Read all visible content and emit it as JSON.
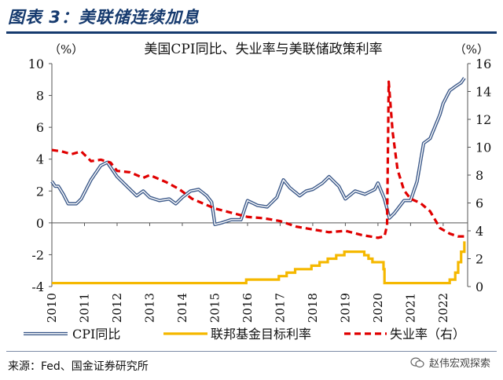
{
  "figure": {
    "title": "图表 3：美联储连续加息",
    "source": "来源：Fed、国金证券研究所",
    "watermark": "赵伟宏观探索"
  },
  "chart_data": {
    "type": "line",
    "title": "美国CPI同比、失业率与美联储政策利率",
    "left_unit": "（%）",
    "right_unit": "（%）",
    "x_range": [
      2010.0,
      2022.75
    ],
    "x_ticks": [
      "2010",
      "2011",
      "2012",
      "2013",
      "2014",
      "2015",
      "2016",
      "2017",
      "2018",
      "2019",
      "2020",
      "2021",
      "2022"
    ],
    "left_ylim": [
      -4,
      10
    ],
    "left_ticks": [
      "10",
      "8",
      "6",
      "4",
      "2",
      "0",
      "-2",
      "-4"
    ],
    "right_ylim": [
      0,
      16
    ],
    "right_ticks": [
      "16",
      "14",
      "12",
      "10",
      "8",
      "6",
      "4",
      "2",
      "0"
    ],
    "grid": false,
    "legend_position": "bottom",
    "series": [
      {
        "name": "CPI同比",
        "axis": "left",
        "color": "#3d5a8a",
        "style": "double-line",
        "x": [
          2010.0,
          2010.1,
          2010.2,
          2010.35,
          2010.5,
          2010.75,
          2010.9,
          2011.2,
          2011.5,
          2011.7,
          2012.0,
          2012.3,
          2012.6,
          2012.8,
          2013.0,
          2013.3,
          2013.6,
          2013.8,
          2014.0,
          2014.25,
          2014.5,
          2014.75,
          2014.9,
          2015.0,
          2015.2,
          2015.5,
          2015.8,
          2016.0,
          2016.3,
          2016.6,
          2016.9,
          2017.1,
          2017.3,
          2017.6,
          2017.8,
          2018.0,
          2018.3,
          2018.5,
          2018.8,
          2019.0,
          2019.3,
          2019.6,
          2019.9,
          2020.0,
          2020.2,
          2020.35,
          2020.5,
          2020.8,
          2021.0,
          2021.2,
          2021.4,
          2021.6,
          2021.9,
          2022.0,
          2022.2,
          2022.4,
          2022.55,
          2022.65
        ],
        "values": [
          2.6,
          2.3,
          2.3,
          1.8,
          1.2,
          1.2,
          1.5,
          2.7,
          3.6,
          3.8,
          2.9,
          2.3,
          1.7,
          2.0,
          1.6,
          1.4,
          1.5,
          1.2,
          1.6,
          2.0,
          2.1,
          1.7,
          1.3,
          -0.1,
          0.0,
          0.2,
          0.2,
          1.4,
          1.1,
          1.0,
          1.6,
          2.7,
          2.2,
          1.7,
          2.0,
          2.1,
          2.5,
          2.9,
          2.3,
          1.5,
          2.0,
          1.8,
          2.1,
          2.5,
          1.5,
          0.3,
          0.6,
          1.4,
          1.4,
          2.6,
          5.0,
          5.3,
          6.8,
          7.5,
          8.3,
          8.6,
          8.8,
          9.1
        ]
      },
      {
        "name": "联邦基金目标利率",
        "axis": "right",
        "color": "#f5b800",
        "style": "step",
        "x": [
          2010.0,
          2015.96,
          2016.96,
          2017.2,
          2017.46,
          2017.96,
          2018.21,
          2018.46,
          2018.72,
          2018.97,
          2019.58,
          2019.71,
          2019.83,
          2020.17,
          2020.2,
          2022.2,
          2022.37,
          2022.46,
          2022.55,
          2022.65
        ],
        "values": [
          0.25,
          0.5,
          0.75,
          1.0,
          1.25,
          1.5,
          1.75,
          2.0,
          2.25,
          2.5,
          2.25,
          2.0,
          1.75,
          1.25,
          0.25,
          0.5,
          1.0,
          1.75,
          2.5,
          3.25
        ]
      },
      {
        "name": "失业率（右）",
        "axis": "right",
        "color": "#e00000",
        "style": "dashed",
        "x": [
          2010.0,
          2010.3,
          2010.6,
          2010.9,
          2011.2,
          2011.5,
          2011.8,
          2012.0,
          2012.4,
          2012.8,
          2013.0,
          2013.5,
          2013.9,
          2014.3,
          2014.7,
          2015.0,
          2015.5,
          2016.0,
          2016.5,
          2017.0,
          2017.5,
          2018.0,
          2018.5,
          2019.0,
          2019.5,
          2020.0,
          2020.2,
          2020.28,
          2020.33,
          2020.45,
          2020.6,
          2020.8,
          2021.0,
          2021.3,
          2021.6,
          2021.9,
          2022.2,
          2022.45,
          2022.65
        ],
        "values": [
          9.8,
          9.7,
          9.5,
          9.7,
          9.0,
          9.1,
          8.9,
          8.3,
          8.2,
          7.8,
          8.0,
          7.5,
          7.0,
          6.3,
          5.9,
          5.6,
          5.3,
          5.0,
          4.9,
          4.7,
          4.3,
          4.1,
          3.9,
          4.0,
          3.7,
          3.5,
          3.6,
          4.4,
          14.7,
          11.1,
          8.4,
          6.9,
          6.3,
          6.0,
          5.4,
          4.2,
          3.8,
          3.6,
          3.6
        ]
      }
    ]
  }
}
